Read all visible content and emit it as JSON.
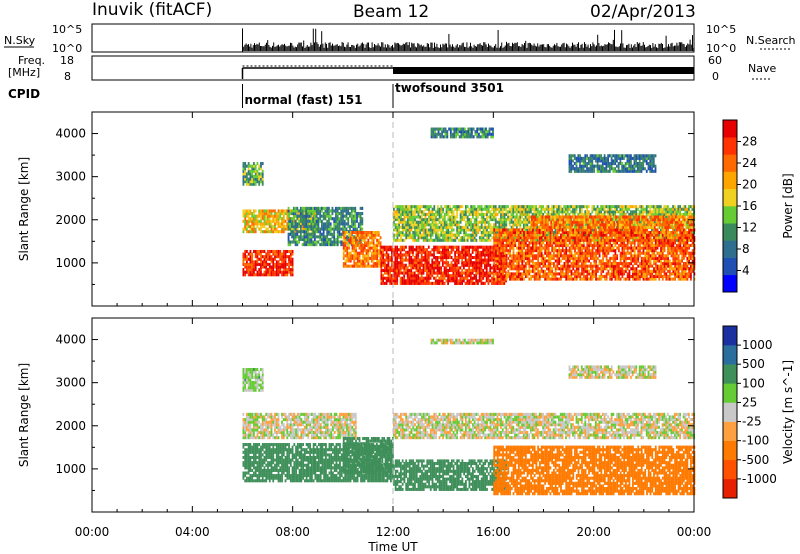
{
  "header": {
    "station": "Inuvik (fitACF)",
    "beam": "Beam 12",
    "date": "02/Apr/2013"
  },
  "top_panels": {
    "nsky_label": "N.Sky",
    "nsearch_label": "N.Search",
    "nsky_ticks": [
      "10^5",
      "10^0"
    ],
    "nsearch_ticks": [
      "10^5",
      "10^0"
    ],
    "freq_label": [
      "Freq.",
      "[MHz]"
    ],
    "freq_ticks": [
      "18",
      "8"
    ],
    "nave_label": "Nave",
    "nave_ticks": [
      "60",
      "0"
    ],
    "cpid_label": "CPID",
    "modes": [
      {
        "label": "normal (fast) 151",
        "start_hour": 6.0,
        "end_hour": 12.0
      },
      {
        "label": "twofsound 3501",
        "start_hour": 12.0,
        "end_hour": 24.0
      }
    ]
  },
  "chart_data": [
    {
      "type": "heatmap",
      "title": "",
      "xlabel": "Time UT",
      "ylabel": "Slant Range [km]",
      "x_ticks": [
        "00:00",
        "04:00",
        "08:00",
        "12:00",
        "16:00",
        "20:00",
        "00:00"
      ],
      "xlim_hours": [
        0,
        24
      ],
      "ylim_km": [
        0,
        4500
      ],
      "y_ticks": [
        1000,
        2000,
        3000,
        4000
      ],
      "colorbar": {
        "label": "Power [dB]",
        "ticks": [
          "4",
          "8",
          "12",
          "16",
          "20",
          "24",
          "28"
        ],
        "colors": [
          "#0000ff",
          "#1f4fb3",
          "#2e6e8e",
          "#3a8a5c",
          "#66cc33",
          "#f0d020",
          "#ffa500",
          "#ff6a00",
          "#ff3300",
          "#e60000"
        ]
      },
      "data_start_hour": 6.0,
      "bands": [
        {
          "t0": 6.0,
          "t1": 8.0,
          "r0": 700,
          "r1": 1300,
          "v": 26
        },
        {
          "t0": 6.0,
          "t1": 9.0,
          "r0": 1700,
          "r1": 2200,
          "v": 18
        },
        {
          "t0": 7.8,
          "t1": 10.8,
          "r0": 1400,
          "r1": 2300,
          "v": 10
        },
        {
          "t0": 10.0,
          "t1": 11.5,
          "r0": 900,
          "r1": 1700,
          "v": 22
        },
        {
          "t0": 11.5,
          "t1": 16.5,
          "r0": 500,
          "r1": 1400,
          "v": 27
        },
        {
          "t0": 12.0,
          "t1": 24.0,
          "r0": 1500,
          "r1": 2300,
          "v": 14
        },
        {
          "t0": 16.0,
          "t1": 24.0,
          "r0": 600,
          "r1": 1800,
          "v": 24
        },
        {
          "t0": 17.5,
          "t1": 24.0,
          "r0": 1800,
          "r1": 2100,
          "v": 22
        },
        {
          "t0": 6.0,
          "t1": 6.8,
          "r0": 2800,
          "r1": 3300,
          "v": 12
        },
        {
          "t0": 13.5,
          "t1": 16.0,
          "r0": 3900,
          "r1": 4100,
          "v": 9
        },
        {
          "t0": 19.0,
          "t1": 22.5,
          "r0": 3100,
          "r1": 3500,
          "v": 8
        }
      ]
    },
    {
      "type": "heatmap",
      "title": "",
      "xlabel": "Time UT",
      "ylabel": "Slant Range [km]",
      "x_ticks": [
        "00:00",
        "04:00",
        "08:00",
        "12:00",
        "16:00",
        "20:00",
        "00:00"
      ],
      "xlim_hours": [
        0,
        24
      ],
      "ylim_km": [
        0,
        4500
      ],
      "y_ticks": [
        1000,
        2000,
        3000,
        4000
      ],
      "colorbar": {
        "label": "Velocity [m s^-1]",
        "ticks": [
          "1000",
          "500",
          "100",
          "25",
          "-25",
          "-100",
          "-500",
          "-1000"
        ],
        "colors": [
          "#1a2fa0",
          "#2a6e9e",
          "#3f8f5a",
          "#66cc33",
          "#c8c8c8",
          "#ffa040",
          "#ff7a00",
          "#ff5000",
          "#e62000"
        ]
      },
      "data_start_hour": 6.0,
      "bands": [
        {
          "t0": 6.0,
          "t1": 10.5,
          "r0": 1700,
          "r1": 2300,
          "v": 0
        },
        {
          "t0": 6.0,
          "t1": 12.0,
          "r0": 700,
          "r1": 1600,
          "v": 400
        },
        {
          "t0": 10.0,
          "t1": 12.0,
          "r0": 900,
          "r1": 1700,
          "v": 300
        },
        {
          "t0": 12.0,
          "t1": 16.5,
          "r0": 500,
          "r1": 1200,
          "v": 350
        },
        {
          "t0": 12.0,
          "t1": 24.0,
          "r0": 1700,
          "r1": 2300,
          "v": 0
        },
        {
          "t0": 16.0,
          "t1": 24.0,
          "r0": 400,
          "r1": 1500,
          "v": -300
        },
        {
          "t0": 19.0,
          "t1": 22.5,
          "r0": 3100,
          "r1": 3400,
          "v": 0
        },
        {
          "t0": 13.5,
          "t1": 16.0,
          "r0": 3900,
          "r1": 4000,
          "v": 0
        },
        {
          "t0": 6.0,
          "t1": 6.8,
          "r0": 2800,
          "r1": 3300,
          "v": 50
        }
      ]
    }
  ]
}
